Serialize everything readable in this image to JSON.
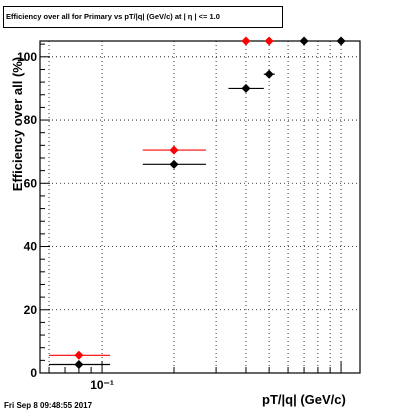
{
  "title": "Efficiency over all for Primary vs pT/|q| (GeV/c) at | η | <= 1.0",
  "timestamp": "Fri Sep  8 09:48:55 2017",
  "chart_data": {
    "type": "scatter",
    "title": "Efficiency over all for Primary vs pT/|q| (GeV/c) at | η | <= 1.0",
    "xlabel": "pT/|q| (GeV/c)",
    "ylabel": "Efficiency over all (%)",
    "x_scale": "log",
    "xlim": [
      0.055,
      1.2
    ],
    "ylim": [
      0,
      105
    ],
    "grid": true,
    "x_tick_labels": [
      {
        "value": 0.1,
        "label": "10⁻¹"
      }
    ],
    "y_ticks": [
      0,
      20,
      40,
      60,
      80,
      100
    ],
    "series": [
      {
        "color": "#000000",
        "points": [
          {
            "x": 0.08,
            "y": 2.7,
            "xlo": 0.06,
            "xhi": 0.108
          },
          {
            "x": 0.2,
            "y": 66,
            "xlo": 0.148,
            "xhi": 0.272
          },
          {
            "x": 0.4,
            "y": 90,
            "xlo": 0.338,
            "xhi": 0.475
          },
          {
            "x": 0.5,
            "y": 94.5,
            "xlo": 0.475,
            "xhi": 0.528
          },
          {
            "x": 0.7,
            "y": 105,
            "xlo": 0.7,
            "xhi": 0.7
          },
          {
            "x": 1.0,
            "y": 105,
            "xlo": 1.0,
            "xhi": 1.0
          }
        ]
      },
      {
        "color": "#ff0000",
        "points": [
          {
            "x": 0.08,
            "y": 5.6,
            "xlo": 0.06,
            "xhi": 0.108
          },
          {
            "x": 0.2,
            "y": 70.5,
            "xlo": 0.148,
            "xhi": 0.272
          },
          {
            "x": 0.4,
            "y": 105,
            "xlo": 0.4,
            "xhi": 0.4
          },
          {
            "x": 0.5,
            "y": 105,
            "xlo": 0.5,
            "xhi": 0.5
          }
        ]
      }
    ]
  }
}
